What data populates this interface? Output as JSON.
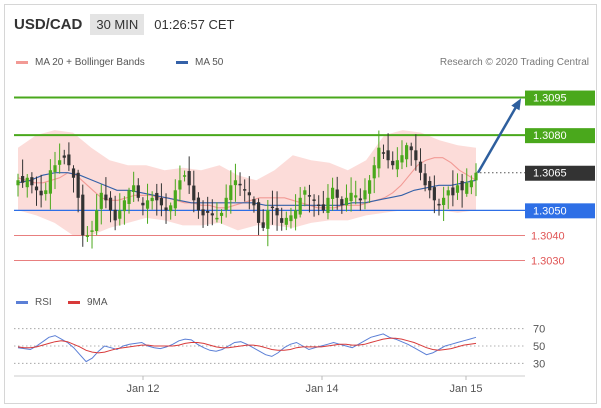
{
  "header": {
    "symbol": "USD/CAD",
    "timeframe": "30 MIN",
    "time": "01:26:57 CET"
  },
  "legend": {
    "ma20": "MA 20 + Bollinger Bands",
    "ma50": "MA 50",
    "research": "Research © 2020 Trading Central",
    "rsi": "RSI",
    "ma9": "9MA"
  },
  "colors": {
    "target": "#4aa81c",
    "pivot": "#2e6fe6",
    "support": "#e05555",
    "last_price": "#333333",
    "bollinger": "#fbd3d0",
    "ma20": "#f29a95",
    "ma50": "#3461a8",
    "candle_up": "#4aa81c",
    "candle_down": "#333333",
    "arrow": "#2e5f9e",
    "rsi": "#5b7fd6",
    "rsi_ma": "#d83a3a"
  },
  "chart_data": {
    "type": "candlestick",
    "pair": "USD/CAD",
    "interval": "30 MIN",
    "x_labels": [
      "Jan 12",
      "Jan 14",
      "Jan 15"
    ],
    "ylim": [
      1.3025,
      1.3102
    ],
    "levels": [
      {
        "value": 1.3095,
        "label": "1.3095",
        "kind": "target"
      },
      {
        "value": 1.308,
        "label": "1.3080",
        "kind": "target"
      },
      {
        "value": 1.3065,
        "label": "1.3065",
        "kind": "last"
      },
      {
        "value": 1.305,
        "label": "1.3050",
        "kind": "pivot"
      },
      {
        "value": 1.304,
        "label": "1.3040",
        "kind": "support"
      },
      {
        "value": 1.303,
        "label": "1.3030",
        "kind": "support"
      }
    ],
    "close_series": [
      1.3062,
      1.3061,
      1.3063,
      1.306,
      1.3058,
      1.3056,
      1.3058,
      1.3066,
      1.3068,
      1.307,
      1.3071,
      1.3068,
      1.3063,
      1.3055,
      1.304,
      1.304,
      1.3042,
      1.305,
      1.3057,
      1.3054,
      1.305,
      1.3046,
      1.305,
      1.3054,
      1.3058,
      1.306,
      1.3055,
      1.3052,
      1.3054,
      1.3055,
      1.3054,
      1.3052,
      1.305,
      1.3052,
      1.3058,
      1.3062,
      1.3064,
      1.306,
      1.3054,
      1.305,
      1.3048,
      1.3049,
      1.3048,
      1.3047,
      1.3049,
      1.3055,
      1.306,
      1.3062,
      1.306,
      1.3058,
      1.3056,
      1.3052,
      1.3045,
      1.3043,
      1.305,
      1.3051,
      1.3048,
      1.3045,
      1.3047,
      1.3048,
      1.305,
      1.3055,
      1.3058,
      1.3056,
      1.3054,
      1.3052,
      1.305,
      1.3055,
      1.3059,
      1.3055,
      1.3052,
      1.3055,
      1.3057,
      1.3056,
      1.3054,
      1.3058,
      1.3062,
      1.3068,
      1.3075,
      1.3073,
      1.307,
      1.3068,
      1.307,
      1.3072,
      1.3076,
      1.3074,
      1.307,
      1.3065,
      1.306,
      1.3058,
      1.3054,
      1.3052,
      1.3055,
      1.3058,
      1.3056,
      1.306,
      1.3058,
      1.3061,
      1.3062,
      1.3065
    ],
    "ma20_series": [
      1.3063,
      1.3062,
      1.3061,
      1.3061,
      1.3062,
      1.3063,
      1.3065,
      1.3064,
      1.3061,
      1.3058,
      1.3055,
      1.3054,
      1.3054,
      1.3055,
      1.3056,
      1.3056,
      1.3056,
      1.3055,
      1.3055,
      1.3054,
      1.3053,
      1.3053,
      1.3052,
      1.3052,
      1.3051,
      1.3051,
      1.3052,
      1.3053,
      1.3054,
      1.3055,
      1.3055,
      1.3055,
      1.3055,
      1.3054,
      1.3053,
      1.3052,
      1.3051,
      1.3051,
      1.3051,
      1.3052,
      1.3052,
      1.3052,
      1.3053,
      1.3054,
      1.3055,
      1.3057,
      1.306,
      1.3064,
      1.3068,
      1.307,
      1.3071,
      1.3071,
      1.3069,
      1.3066,
      1.3064,
      1.3062
    ],
    "ma50_series": [
      1.3061,
      1.3062,
      1.3064,
      1.3065,
      1.3065,
      1.3064,
      1.3062,
      1.306,
      1.3058,
      1.3058,
      1.3057,
      1.3056,
      1.3055,
      1.3054,
      1.3053,
      1.3053,
      1.3053,
      1.3053,
      1.3053,
      1.3053,
      1.3052,
      1.3052,
      1.3052,
      1.3052,
      1.3052,
      1.3052,
      1.3052,
      1.3053,
      1.3053,
      1.3054,
      1.3055,
      1.3056,
      1.3058,
      1.3059,
      1.306,
      1.306,
      1.3061,
      1.3062
    ],
    "bb_upper": [
      1.3075,
      1.308,
      1.3082,
      1.3081,
      1.3075,
      1.307,
      1.3068,
      1.3068,
      1.3066,
      1.3067,
      1.3066,
      1.3068,
      1.3064,
      1.3062,
      1.3066,
      1.3072,
      1.307,
      1.3069,
      1.3066,
      1.307,
      1.308,
      1.3082,
      1.3081,
      1.3078,
      1.3076,
      1.3075
    ],
    "bb_lower": [
      1.305,
      1.3048,
      1.3045,
      1.304,
      1.304,
      1.3043,
      1.3045,
      1.3047,
      1.3046,
      1.3044,
      1.3044,
      1.3045,
      1.3042,
      1.3044,
      1.3044,
      1.3043,
      1.3045,
      1.3046,
      1.3046,
      1.3048,
      1.3049,
      1.305,
      1.305,
      1.305,
      1.3049,
      1.305
    ],
    "arrow": {
      "from": 1.3065,
      "to": 1.3095
    },
    "rsi": {
      "levels": [
        70,
        50,
        30
      ],
      "ylim": [
        20,
        80
      ],
      "rsi_series": [
        48,
        47,
        46,
        50,
        55,
        60,
        62,
        58,
        54,
        48,
        40,
        32,
        36,
        44,
        50,
        48,
        46,
        50,
        52,
        53,
        54,
        50,
        48,
        47,
        49,
        52,
        56,
        58,
        57,
        52,
        48,
        45,
        44,
        46,
        50,
        54,
        55,
        52,
        48,
        44,
        40,
        38,
        42,
        48,
        52,
        54,
        50,
        46,
        48,
        50,
        52,
        54,
        52,
        50,
        48,
        52,
        56,
        60,
        62,
        64,
        60,
        58,
        55,
        52,
        48,
        44,
        40,
        42,
        46,
        50,
        52,
        54,
        56,
        58,
        60
      ],
      "ma9_series": [
        49,
        48,
        48,
        49,
        51,
        53,
        55,
        56,
        55,
        52,
        49,
        45,
        43,
        42,
        43,
        45,
        47,
        48,
        49,
        50,
        51,
        51,
        50,
        50,
        50,
        50,
        51,
        53,
        54,
        54,
        53,
        51,
        49,
        48,
        48,
        49,
        50,
        51,
        51,
        50,
        48,
        46,
        45,
        45,
        46,
        48,
        49,
        49,
        49,
        49,
        50,
        51,
        52,
        52,
        51,
        51,
        52,
        54,
        56,
        58,
        59,
        59,
        58,
        56,
        54,
        51,
        48,
        46,
        45,
        46,
        47,
        49,
        51,
        52,
        53
      ]
    }
  }
}
